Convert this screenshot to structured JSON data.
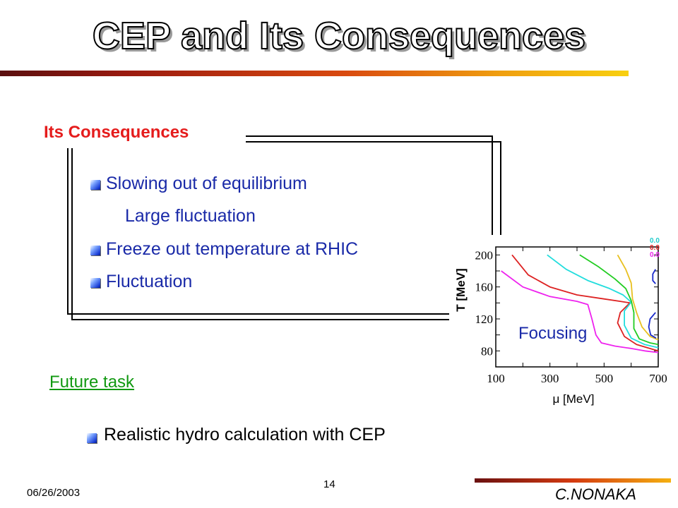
{
  "slide": {
    "title": "CEP and Its Consequences",
    "box_title": "Its Consequences",
    "items": [
      "Slowing out of equilibrium",
      "Large fluctuation",
      "Freeze out temperature at RHIC",
      "Fluctuation"
    ],
    "future_task": "Future task",
    "future_item": "Realistic hydro calculation with CEP",
    "footer": {
      "date": "06/26/2003",
      "page": "14",
      "author": "C.NONAKA"
    },
    "colors": {
      "accent_red": "#e51c1c",
      "item_blue": "#1a2aa8",
      "future_green": "#119911"
    }
  },
  "chart_data": {
    "type": "line",
    "xlabel": "μ [MeV]",
    "ylabel": "T [MeV]",
    "xlim": [
      100,
      700
    ],
    "ylim": [
      60,
      210
    ],
    "xticks": [
      "100",
      "300",
      "500",
      "700"
    ],
    "yticks": [
      "200",
      "160",
      "120",
      "80"
    ],
    "annotation": "Focusing",
    "legend": [
      "0.0",
      "0.0",
      "0.0"
    ],
    "legend_colors": [
      "#22cccc",
      "#dd2222",
      "#ee22ee"
    ],
    "series": [
      {
        "color": "#ee22ee",
        "points": [
          [
            120,
            180
          ],
          [
            200,
            160
          ],
          [
            300,
            148
          ],
          [
            400,
            142
          ],
          [
            440,
            138
          ],
          [
            455,
            120
          ],
          [
            470,
            100
          ],
          [
            490,
            90
          ],
          [
            540,
            86
          ],
          [
            600,
            83
          ],
          [
            650,
            80
          ],
          [
            700,
            78
          ]
        ]
      },
      {
        "color": "#dd2222",
        "points": [
          [
            160,
            200
          ],
          [
            220,
            175
          ],
          [
            300,
            160
          ],
          [
            400,
            150
          ],
          [
            500,
            145
          ],
          [
            560,
            142
          ],
          [
            595,
            140
          ],
          [
            560,
            128
          ],
          [
            550,
            115
          ],
          [
            575,
            98
          ],
          [
            620,
            88
          ],
          [
            680,
            82
          ],
          [
            700,
            80
          ]
        ]
      },
      {
        "color": "#22dddd",
        "points": [
          [
            290,
            200
          ],
          [
            360,
            182
          ],
          [
            440,
            168
          ],
          [
            520,
            158
          ],
          [
            570,
            150
          ],
          [
            600,
            141
          ],
          [
            575,
            130
          ],
          [
            575,
            112
          ],
          [
            600,
            96
          ],
          [
            650,
            88
          ],
          [
            700,
            84
          ]
        ]
      },
      {
        "color": "#22cc22",
        "points": [
          [
            410,
            200
          ],
          [
            480,
            185
          ],
          [
            540,
            170
          ],
          [
            580,
            158
          ],
          [
            600,
            143
          ],
          [
            610,
            128
          ],
          [
            610,
            108
          ],
          [
            630,
            95
          ],
          [
            670,
            90
          ],
          [
            700,
            88
          ]
        ]
      },
      {
        "color": "#e8c020",
        "points": [
          [
            550,
            200
          ],
          [
            580,
            182
          ],
          [
            600,
            165
          ],
          [
            605,
            145
          ],
          [
            620,
            128
          ],
          [
            640,
            110
          ],
          [
            670,
            98
          ],
          [
            700,
            94
          ]
        ]
      },
      {
        "color": "#1a2acc",
        "points": [
          [
            690,
            128
          ],
          [
            670,
            120
          ],
          [
            665,
            110
          ],
          [
            672,
            100
          ],
          [
            692,
            96
          ]
        ]
      },
      {
        "color": "#1a2acc",
        "points": [
          [
            690,
            182
          ],
          [
            680,
            176
          ],
          [
            680,
            168
          ],
          [
            690,
            164
          ]
        ]
      }
    ]
  }
}
